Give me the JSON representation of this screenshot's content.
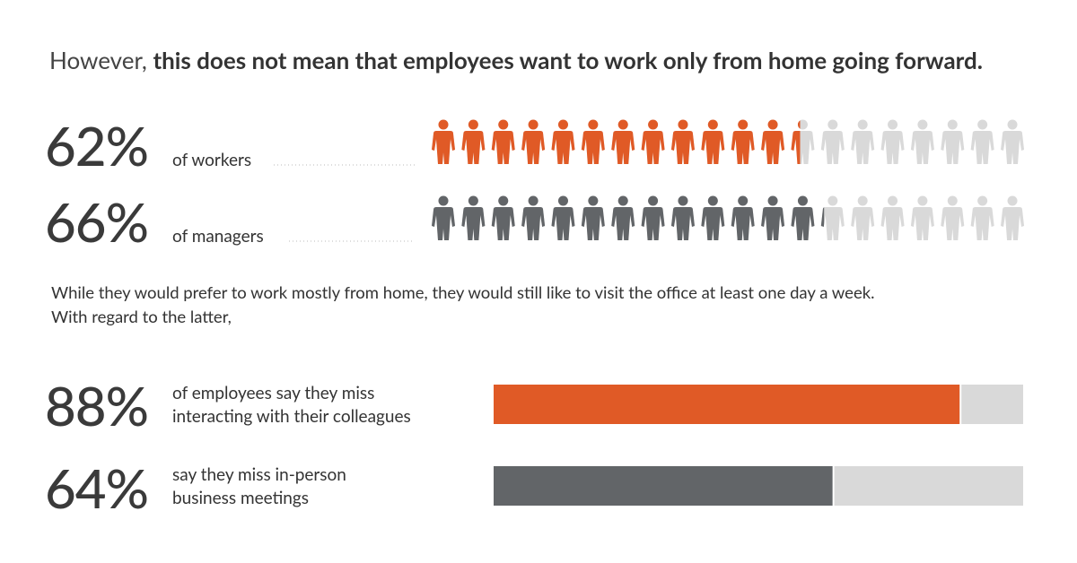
{
  "header": {
    "title_plain": "However,",
    "title_bold": "this does not mean that employees want to work only from home going forward."
  },
  "pictograms": [
    {
      "value": 62,
      "value_label": "62%",
      "label": "of workers",
      "color": "#e05a26"
    },
    {
      "value": 66,
      "value_label": "66%",
      "label": "of managers",
      "color": "#626568"
    }
  ],
  "paragraph": [
    "While they would prefer to work mostly from home, they would still like to visit the office at least one day a week.",
    "With regard to the latter,"
  ],
  "bars": [
    {
      "value": 88,
      "value_label": "88%",
      "label_lines": [
        "of employees say they miss",
        "interacting with their colleagues"
      ],
      "color": "#e05a26"
    },
    {
      "value": 64,
      "value_label": "64%",
      "label_lines": [
        "say they miss in-person",
        "business meetings"
      ],
      "color": "#626568"
    }
  ]
}
